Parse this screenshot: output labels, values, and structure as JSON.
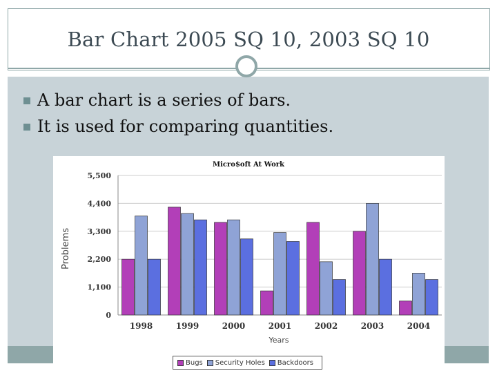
{
  "slide": {
    "title": "Bar Chart  2005 SQ 10, 2003 SQ 10",
    "bullets": [
      "A bar chart is a series of bars.",
      "It is used for comparing quantities."
    ]
  },
  "colors": {
    "accent": "#8fa7a8",
    "content_background": "#c8d3d8",
    "title_text": "#3c4a53"
  },
  "chart_data": {
    "type": "bar",
    "title": "Micro$oft At Work",
    "xlabel": "Years",
    "ylabel": "Problems",
    "categories": [
      "1998",
      "1999",
      "2000",
      "2001",
      "2002",
      "2003",
      "2004"
    ],
    "yticks": [
      "0",
      "1,100",
      "2,200",
      "3,300",
      "4,400",
      "5,500"
    ],
    "ylim": [
      0,
      5500
    ],
    "grid": true,
    "legend_position": "bottom",
    "series": [
      {
        "name": "Bugs",
        "color": "#b23fb8",
        "values": [
          2200,
          4250,
          3650,
          950,
          3650,
          3300,
          550
        ]
      },
      {
        "name": "Security Holes",
        "color": "#8fa3d6",
        "values": [
          3900,
          4000,
          3750,
          3250,
          2100,
          4400,
          1650
        ]
      },
      {
        "name": "Backdoors",
        "color": "#5b6fe0",
        "values": [
          2200,
          3750,
          3000,
          2900,
          1400,
          2200,
          1400
        ]
      }
    ]
  }
}
